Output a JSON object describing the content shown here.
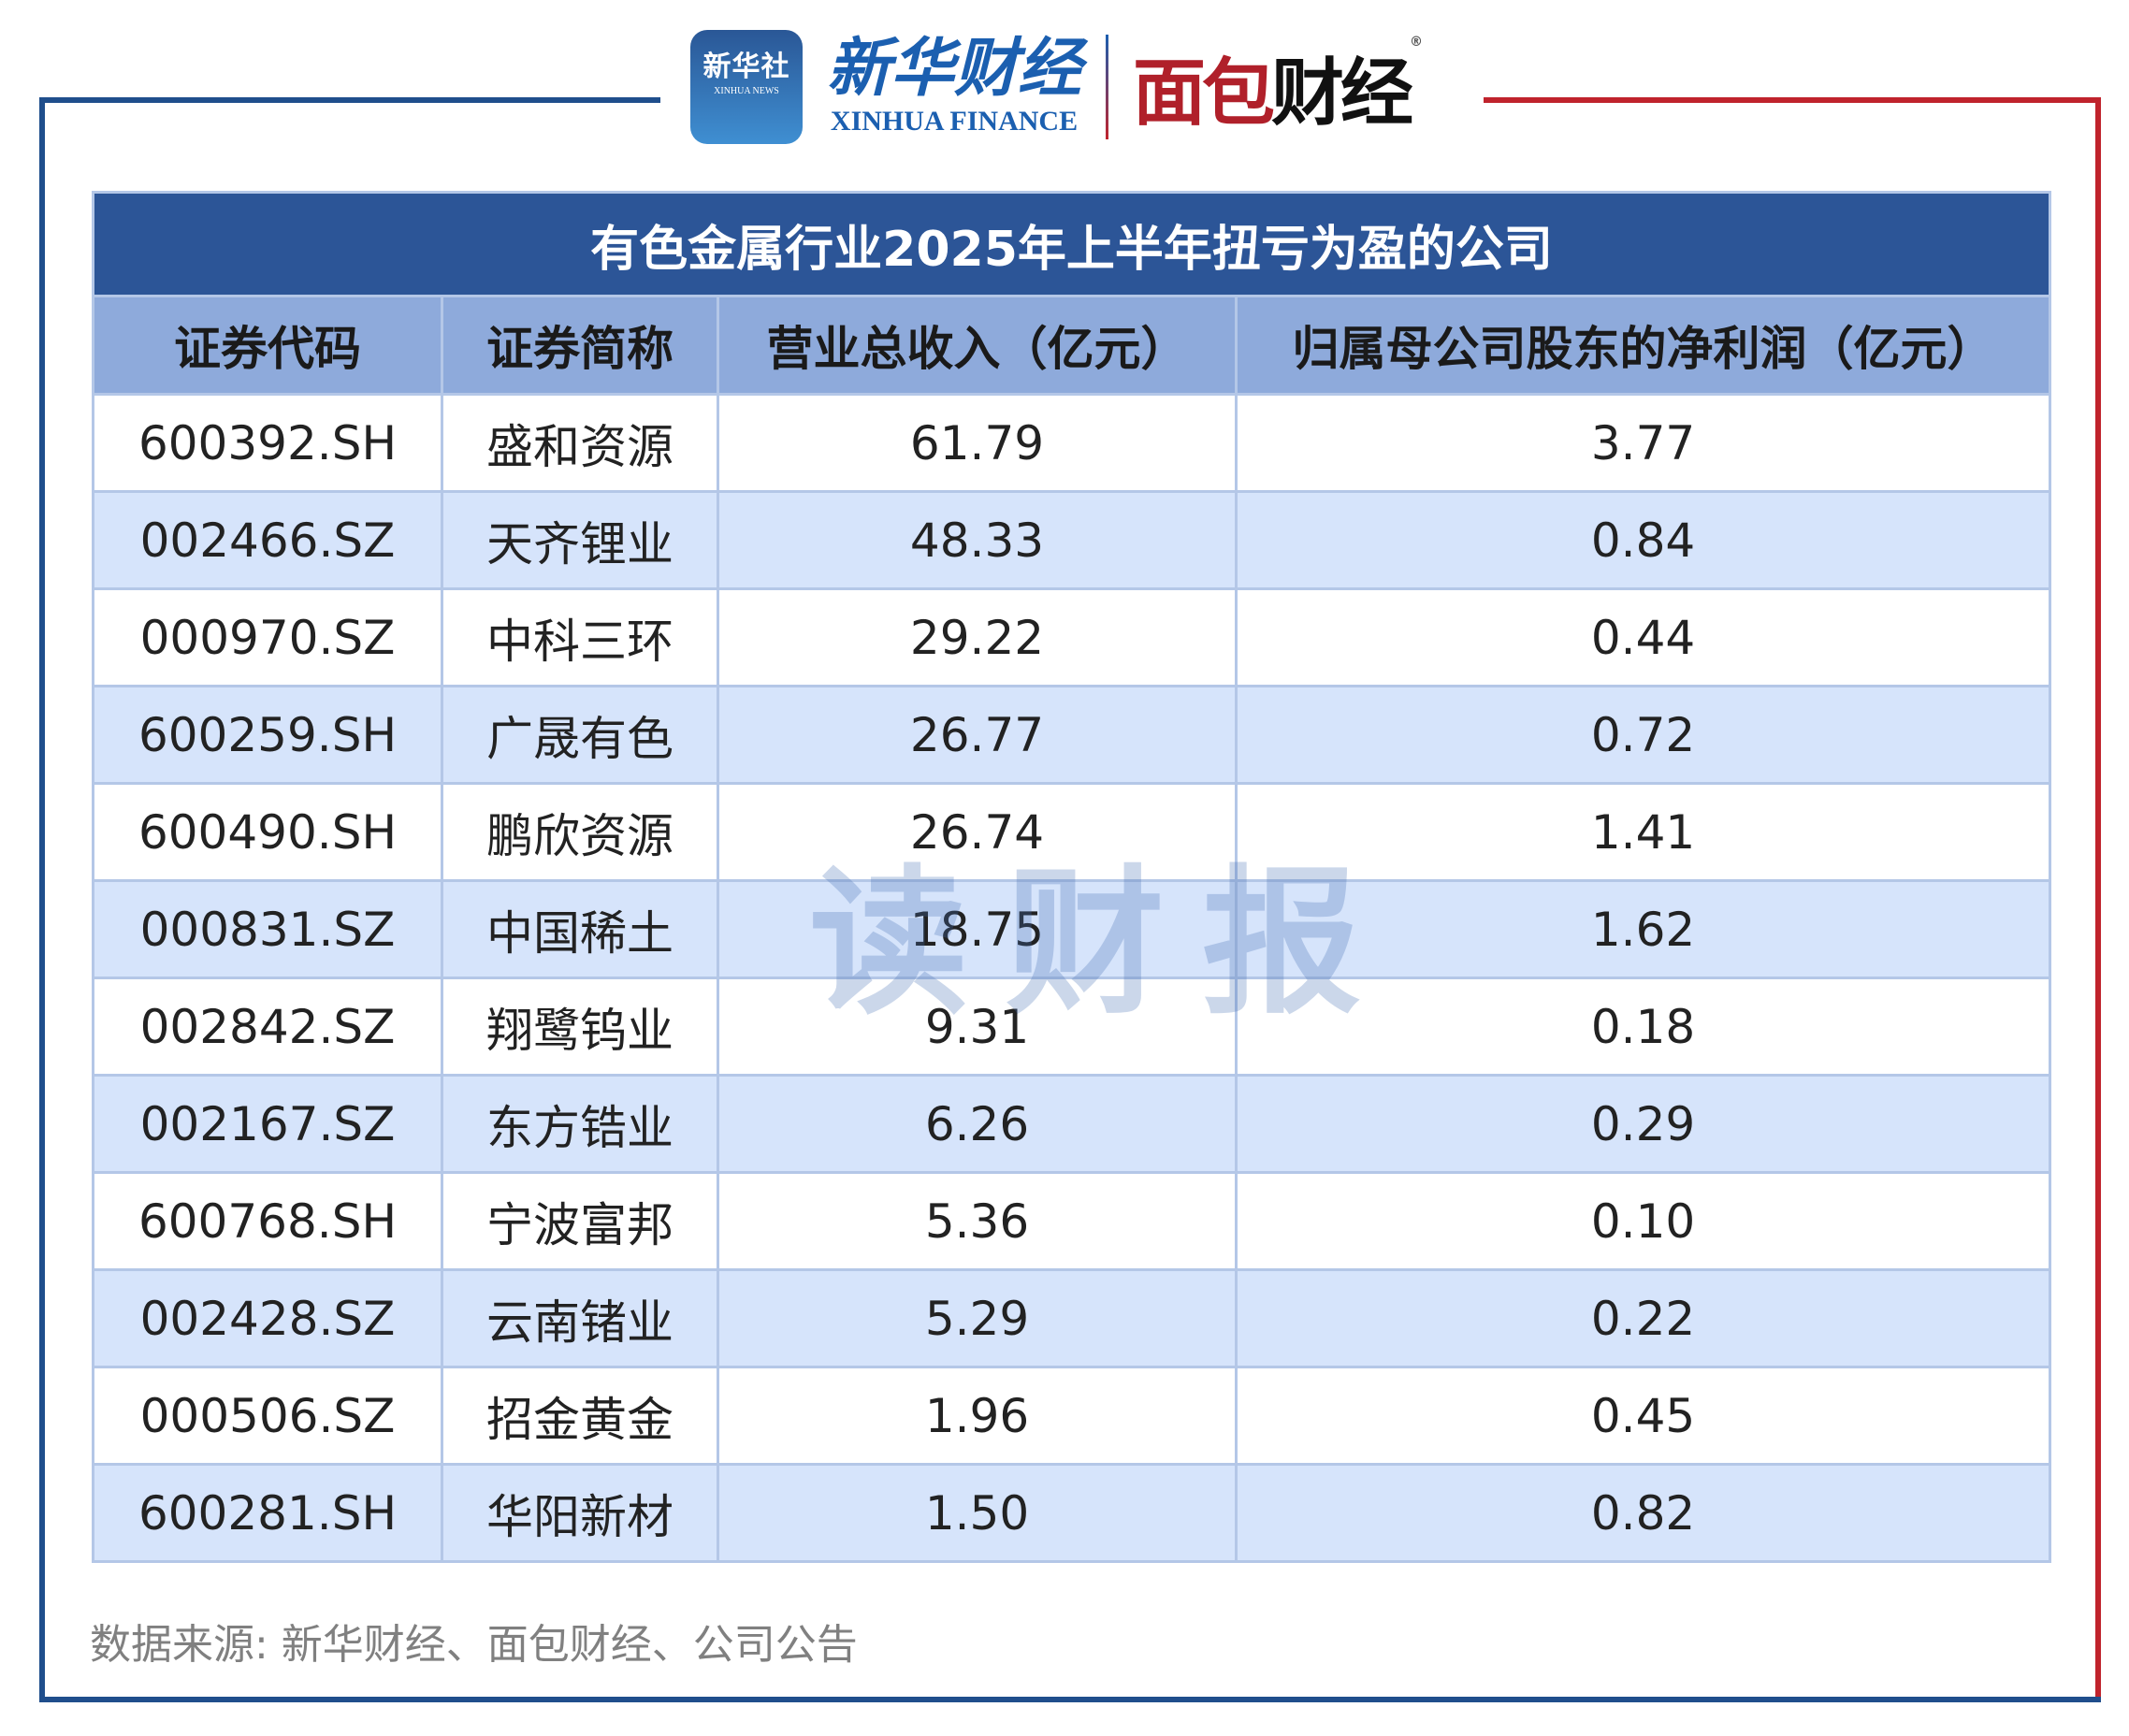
{
  "logos": {
    "xinhua_news_cn": "新华社",
    "xinhua_news_en": "XINHUA NEWS",
    "xinhua_finance_cn": "新华财经",
    "xinhua_finance_en": "XINHUA FINANCE",
    "mianbao_red": "面包",
    "mianbao_black": "财经",
    "registered": "®"
  },
  "colors": {
    "title_bg": "#2c5597",
    "header_bg": "#8eaadb",
    "alt_row": "#d6e4fb",
    "frame_blue": "#1f4e8c",
    "frame_red": "#c0232c"
  },
  "table": {
    "title": "有色金属行业2025年上半年扭亏为盈的公司",
    "columns": [
      "证券代码",
      "证券简称",
      "营业总收入（亿元）",
      "归属母公司股东的净利润（亿元）"
    ],
    "rows": [
      [
        "600392.SH",
        "盛和资源",
        "61.79",
        "3.77"
      ],
      [
        "002466.SZ",
        "天齐锂业",
        "48.33",
        "0.84"
      ],
      [
        "000970.SZ",
        "中科三环",
        "29.22",
        "0.44"
      ],
      [
        "600259.SH",
        "广晟有色",
        "26.77",
        "0.72"
      ],
      [
        "600490.SH",
        "鹏欣资源",
        "26.74",
        "1.41"
      ],
      [
        "000831.SZ",
        "中国稀土",
        "18.75",
        "1.62"
      ],
      [
        "002842.SZ",
        "翔鹭钨业",
        "9.31",
        "0.18"
      ],
      [
        "002167.SZ",
        "东方锆业",
        "6.26",
        "0.29"
      ],
      [
        "600768.SH",
        "宁波富邦",
        "5.36",
        "0.10"
      ],
      [
        "002428.SZ",
        "云南锗业",
        "5.29",
        "0.22"
      ],
      [
        "000506.SZ",
        "招金黄金",
        "1.96",
        "0.45"
      ],
      [
        "600281.SH",
        "华阳新材",
        "1.50",
        "0.82"
      ]
    ]
  },
  "watermark": "读财报",
  "source": "数据来源: 新华财经、面包财经、公司公告"
}
